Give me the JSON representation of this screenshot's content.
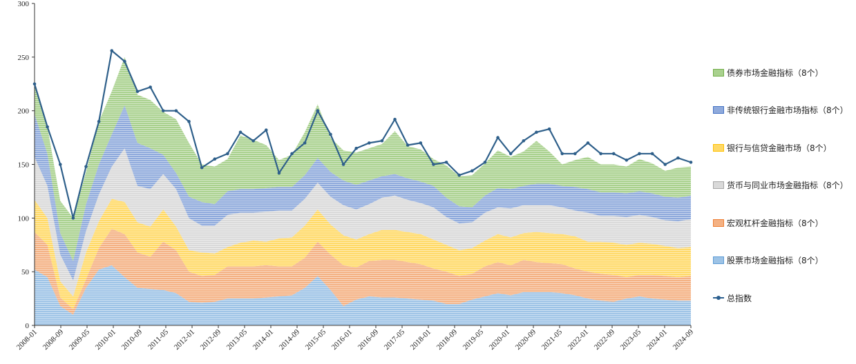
{
  "chart_data": {
    "type": "area",
    "stacked": true,
    "ylim": [
      0,
      300
    ],
    "yticks": [
      0,
      50,
      100,
      150,
      200,
      250,
      300
    ],
    "grid": false,
    "legend_position": "right",
    "xtick_labels": [
      "2008-01",
      "2008-09",
      "2009-05",
      "2010-01",
      "2010-09",
      "2011-05",
      "2012-01",
      "2012-09",
      "2013-05",
      "2014-01",
      "2014-09",
      "2015-05",
      "2016-01",
      "2016-09",
      "2017-05",
      "2018-01",
      "2018-09",
      "2019-05",
      "2020-01",
      "2020-09",
      "2021-05",
      "2022-01",
      "2022-09",
      "2023-05",
      "2024-01",
      "2024-09"
    ],
    "x": [
      "2008-01",
      "2008-05",
      "2008-09",
      "2009-01",
      "2009-05",
      "2009-09",
      "2010-01",
      "2010-05",
      "2010-09",
      "2011-01",
      "2011-05",
      "2011-09",
      "2012-01",
      "2012-05",
      "2012-09",
      "2013-01",
      "2013-05",
      "2013-09",
      "2014-01",
      "2014-05",
      "2014-09",
      "2015-01",
      "2015-05",
      "2015-09",
      "2016-01",
      "2016-05",
      "2016-09",
      "2017-01",
      "2017-05",
      "2017-09",
      "2018-01",
      "2018-05",
      "2018-09",
      "2019-01",
      "2019-05",
      "2019-09",
      "2020-01",
      "2020-05",
      "2020-09",
      "2021-01",
      "2021-05",
      "2021-09",
      "2022-01",
      "2022-05",
      "2022-09",
      "2023-01",
      "2023-05",
      "2023-09",
      "2024-01",
      "2024-05",
      "2024-09",
      "2024-11"
    ],
    "series": [
      {
        "name": "股票市场金融指标（8个）",
        "color": "#9dc3e6",
        "values": [
          52,
          45,
          18,
          10,
          35,
          52,
          56,
          45,
          35,
          34,
          33,
          30,
          22,
          21,
          22,
          25,
          25,
          25,
          26,
          27,
          28,
          35,
          46,
          33,
          18,
          24,
          27,
          26,
          26,
          25,
          24,
          23,
          20,
          20,
          24,
          27,
          30,
          28,
          31,
          31,
          31,
          30,
          28,
          25,
          23,
          22,
          25,
          27,
          25,
          24,
          23,
          23
        ]
      },
      {
        "name": "宏观杠杆金融指标（8个）",
        "color": "#f4b183",
        "values": [
          35,
          30,
          8,
          5,
          8,
          20,
          34,
          40,
          33,
          30,
          45,
          40,
          28,
          25,
          25,
          30,
          30,
          30,
          30,
          28,
          27,
          28,
          32,
          33,
          38,
          30,
          33,
          35,
          35,
          34,
          33,
          30,
          30,
          26,
          24,
          28,
          29,
          28,
          30,
          28,
          27,
          27,
          25,
          25,
          25,
          25,
          20,
          20,
          22,
          22,
          22,
          23
        ]
      },
      {
        "name": "银行与信贷金融市场（8个）",
        "color": "#ffd966",
        "values": [
          30,
          25,
          15,
          12,
          25,
          25,
          28,
          30,
          28,
          28,
          30,
          22,
          20,
          22,
          20,
          18,
          22,
          24,
          22,
          26,
          27,
          30,
          30,
          28,
          28,
          26,
          25,
          28,
          28,
          28,
          28,
          27,
          25,
          24,
          24,
          24,
          26,
          26,
          25,
          28,
          28,
          28,
          30,
          28,
          30,
          30,
          30,
          30,
          29,
          28,
          27,
          27
        ]
      },
      {
        "name": "货币与同业市场金融指标（8个）",
        "color": "#d9d9d9",
        "values": [
          40,
          30,
          25,
          15,
          20,
          25,
          30,
          50,
          34,
          35,
          33,
          35,
          30,
          25,
          26,
          30,
          28,
          26,
          28,
          26,
          25,
          25,
          25,
          26,
          28,
          28,
          28,
          30,
          32,
          30,
          29,
          30,
          26,
          25,
          24,
          26,
          25,
          27,
          26,
          25,
          26,
          25,
          24,
          27,
          24,
          25,
          26,
          26,
          25,
          24,
          25,
          26
        ]
      },
      {
        "name": "非传统银行金融市场指标（8个）",
        "color": "#8faadc",
        "values": [
          40,
          30,
          20,
          18,
          25,
          28,
          30,
          40,
          40,
          38,
          18,
          15,
          20,
          22,
          20,
          22,
          22,
          22,
          22,
          22,
          22,
          22,
          23,
          23,
          23,
          23,
          22,
          20,
          20,
          20,
          20,
          20,
          18,
          16,
          14,
          16,
          18,
          18,
          18,
          20,
          20,
          20,
          22,
          22,
          22,
          22,
          22,
          22,
          22,
          22,
          22,
          22
        ]
      },
      {
        "name": "债券市场金融指标（8个）",
        "color": "#a9d18e",
        "values": [
          28,
          25,
          30,
          40,
          30,
          40,
          40,
          45,
          45,
          45,
          40,
          50,
          50,
          35,
          35,
          30,
          50,
          46,
          40,
          25,
          30,
          40,
          50,
          32,
          28,
          30,
          30,
          30,
          40,
          30,
          30,
          25,
          30,
          28,
          30,
          30,
          35,
          30,
          32,
          40,
          30,
          20,
          25,
          30,
          26,
          26,
          25,
          30,
          28,
          24,
          28,
          27
        ]
      }
    ],
    "total_line": {
      "name": "总指数",
      "color": "#2e5f8a",
      "values": [
        225,
        185,
        150,
        100,
        148,
        190,
        256,
        246,
        218,
        222,
        200,
        200,
        190,
        147,
        155,
        160,
        180,
        172,
        182,
        142,
        160,
        170,
        200,
        178,
        150,
        165,
        170,
        172,
        192,
        168,
        170,
        150,
        152,
        140,
        144,
        152,
        175,
        160,
        172,
        180,
        183,
        160,
        160,
        170,
        160,
        160,
        154,
        160,
        160,
        150,
        156,
        152
      ]
    }
  },
  "legend": {
    "items": [
      {
        "label": "债券市场金融指标（8个）",
        "color": "#a9d18e"
      },
      {
        "label": "非传统银行金融市场指标（8个）",
        "color": "#8faadc"
      },
      {
        "label": "银行与信贷金融市场（8个）",
        "color": "#ffd966"
      },
      {
        "label": "货币与同业市场金融指标（8个）",
        "color": "#d9d9d9"
      },
      {
        "label": "宏观杠杆金融指标（8个）",
        "color": "#f4b183"
      },
      {
        "label": "股票市场金融指标（8个）",
        "color": "#9dc3e6"
      }
    ],
    "line_label": "总指数"
  }
}
